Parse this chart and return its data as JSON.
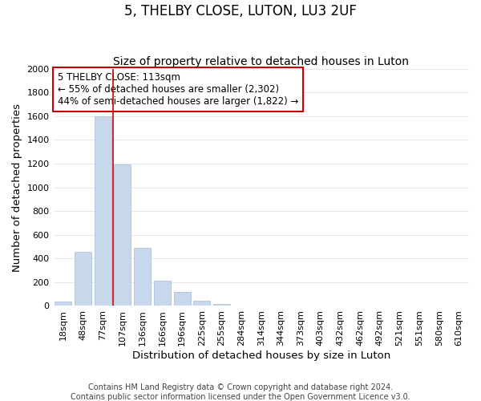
{
  "title": "5, THELBY CLOSE, LUTON, LU3 2UF",
  "subtitle": "Size of property relative to detached houses in Luton",
  "xlabel": "Distribution of detached houses by size in Luton",
  "ylabel": "Number of detached properties",
  "bar_labels": [
    "18sqm",
    "48sqm",
    "77sqm",
    "107sqm",
    "136sqm",
    "166sqm",
    "196sqm",
    "225sqm",
    "255sqm",
    "284sqm",
    "314sqm",
    "344sqm",
    "373sqm",
    "403sqm",
    "432sqm",
    "462sqm",
    "492sqm",
    "521sqm",
    "551sqm",
    "580sqm",
    "610sqm"
  ],
  "bar_values": [
    35,
    455,
    1600,
    1190,
    490,
    210,
    115,
    45,
    20,
    0,
    0,
    0,
    0,
    0,
    0,
    0,
    0,
    0,
    0,
    0,
    0
  ],
  "bar_color": "#c8d8ec",
  "bar_edge_color": "#a8bcd8",
  "vline_color": "#cc0000",
  "annotation_line1": "5 THELBY CLOSE: 113sqm",
  "annotation_line2": "← 55% of detached houses are smaller (2,302)",
  "annotation_line3": "44% of semi-detached houses are larger (1,822) →",
  "annotation_box_color": "#ffffff",
  "annotation_box_edge_color": "#cc0000",
  "ylim": [
    0,
    2000
  ],
  "yticks": [
    0,
    200,
    400,
    600,
    800,
    1000,
    1200,
    1400,
    1600,
    1800,
    2000
  ],
  "footer_line1": "Contains HM Land Registry data © Crown copyright and database right 2024.",
  "footer_line2": "Contains public sector information licensed under the Open Government Licence v3.0.",
  "grid_color": "#dce8f0",
  "title_fontsize": 12,
  "subtitle_fontsize": 10,
  "axis_label_fontsize": 9.5,
  "tick_fontsize": 8,
  "annotation_fontsize": 8.5,
  "footer_fontsize": 7
}
